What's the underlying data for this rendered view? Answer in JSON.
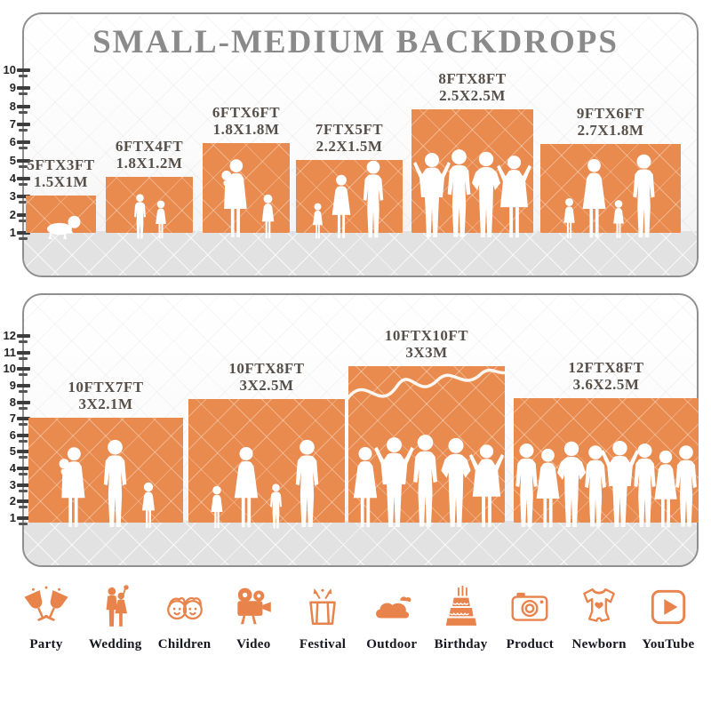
{
  "title": "SMALL-MEDIUM BACKDROPS",
  "panels": [
    {
      "name": "small-medium-sizes",
      "ruler_numbers": [
        10,
        9,
        8,
        7,
        6,
        5,
        4,
        3,
        2,
        1
      ],
      "backdrops": [
        {
          "size_ft": "5FTX3FT",
          "size_m": "1.5X1M",
          "figures": [
            "baby"
          ]
        },
        {
          "size_ft": "6FTX4FT",
          "size_m": "1.8X1.2M",
          "figures": [
            "boy",
            "girl"
          ]
        },
        {
          "size_ft": "6FTX6FT",
          "size_m": "1.8X1.8M",
          "figures": [
            "woman-baby",
            "girl"
          ]
        },
        {
          "size_ft": "7FTX5FT",
          "size_m": "2.2X1.5M",
          "figures": [
            "girl",
            "woman",
            "man"
          ]
        },
        {
          "size_ft": "8FTX8FT",
          "size_m": "2.5X2.5M",
          "figures": [
            "man-armsup",
            "man",
            "man-hips",
            "woman-armsup"
          ]
        },
        {
          "size_ft": "9FTX6FT",
          "size_m": "2.7X1.8M",
          "figures": [
            "girl",
            "woman",
            "girl",
            "man"
          ]
        }
      ]
    },
    {
      "name": "medium-large-sizes",
      "ruler_numbers": [
        12,
        11,
        10,
        9,
        8,
        7,
        6,
        5,
        4,
        3,
        2,
        1
      ],
      "backdrops": [
        {
          "size_ft": "10FTX7FT",
          "size_m": "3X2.1M",
          "figures": [
            "woman-baby",
            "man",
            "girl"
          ]
        },
        {
          "size_ft": "10FTX8FT",
          "size_m": "3X2.5M",
          "figures": [
            "girl",
            "woman",
            "boy",
            "man"
          ]
        },
        {
          "size_ft": "10FTX10FT",
          "size_m": "3X3M",
          "figures": [
            "woman",
            "man-armsup",
            "man",
            "man-hips",
            "woman-armsup"
          ]
        },
        {
          "size_ft": "12FTX8FT",
          "size_m": "3.6X2.5M",
          "figures": [
            "man",
            "woman",
            "man-hips",
            "man",
            "man-armsup",
            "man",
            "woman",
            "man"
          ]
        }
      ]
    }
  ],
  "categories": [
    {
      "label": "Party",
      "icon": "party-glasses-icon"
    },
    {
      "label": "Wedding",
      "icon": "wedding-couple-icon"
    },
    {
      "label": "Children",
      "icon": "children-faces-icon"
    },
    {
      "label": "Video",
      "icon": "video-camera-icon"
    },
    {
      "label": "Festival",
      "icon": "gift-box-icon"
    },
    {
      "label": "Outdoor",
      "icon": "cloud-icon"
    },
    {
      "label": "Birthday",
      "icon": "birthday-cake-icon"
    },
    {
      "label": "Product",
      "icon": "photo-camera-icon"
    },
    {
      "label": "Newborn",
      "icon": "baby-onesie-icon"
    },
    {
      "label": "YouTube",
      "icon": "youtube-play-icon"
    }
  ],
  "colors": {
    "backdrop_orange": "#E98B4F",
    "icon_orange": "#E8834B",
    "title_gray": "#8A8A8A",
    "label_gray": "#57504A",
    "floor_gray": "#E2E2E3",
    "silhouette_white": "#FFFFFF"
  }
}
